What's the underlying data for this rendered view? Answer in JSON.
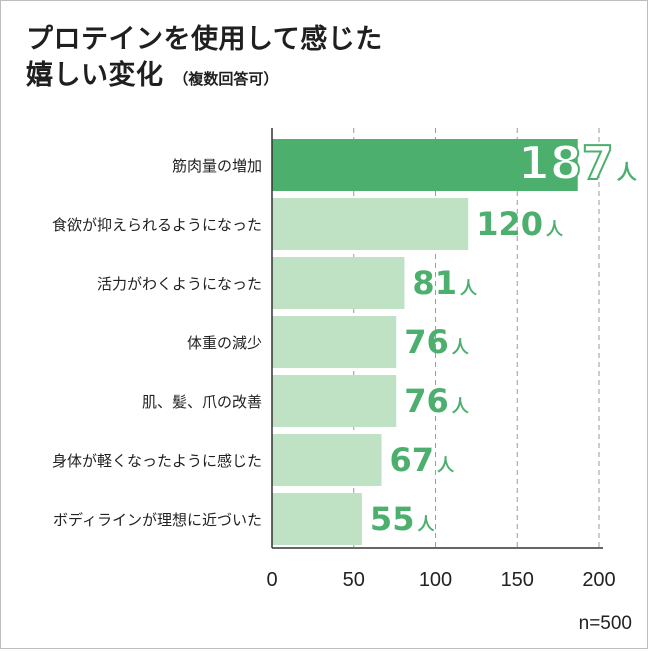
{
  "title": {
    "line1": "プロテインを使用して感じた",
    "line2": "嬉しい変化",
    "note": "（複数回答可）"
  },
  "sample_note": "n=500",
  "unit": "人",
  "colors": {
    "highlight_bar": "#4daf6e",
    "bar": "#bfe2c4",
    "value_text": "#4daf6e",
    "grid": "#9a9a9a",
    "axis": "#333333"
  },
  "chart_data": {
    "type": "bar",
    "orientation": "horizontal",
    "categories": [
      "筋肉量の増加",
      "食欲が抑えられるようになった",
      "活力がわくようになった",
      "体重の減少",
      "肌、髪、爪の改善",
      "身体が軽くなったように感じた",
      "ボディラインが理想に近づいた"
    ],
    "values": [
      187,
      120,
      81,
      76,
      76,
      67,
      55
    ],
    "xlim": [
      0,
      200
    ],
    "xticks": [
      "0",
      "50",
      "100",
      "150",
      "200"
    ],
    "grid": "vertical-dashed",
    "highlight_index": 0
  }
}
